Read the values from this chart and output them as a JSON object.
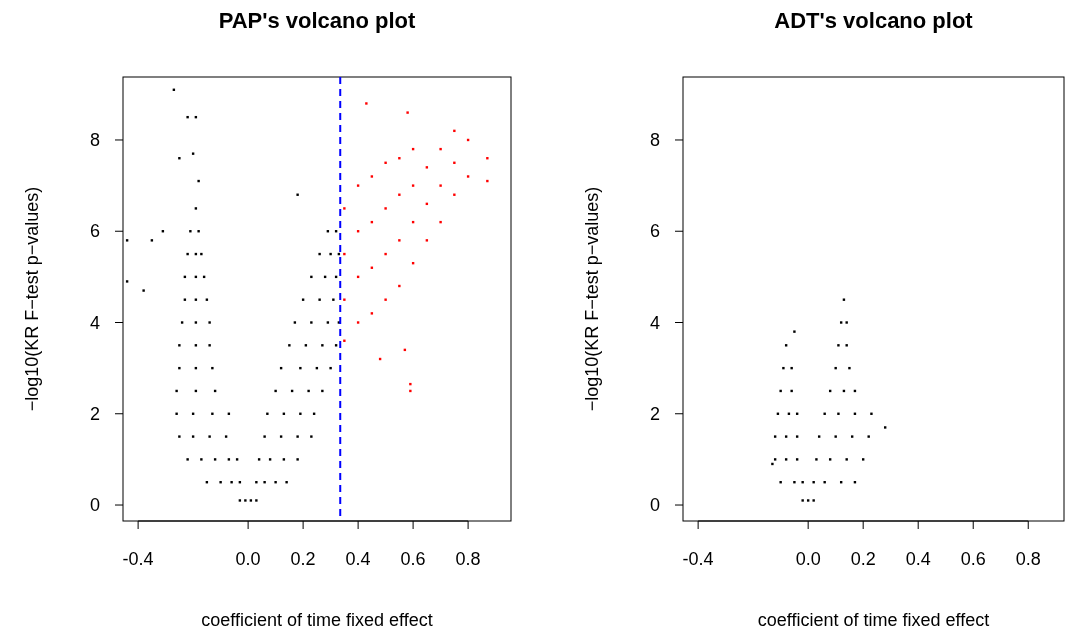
{
  "chart_data": [
    {
      "type": "scatter",
      "title": "PAP's volcano plot",
      "xlabel": "coefficient of time fixed effect",
      "ylabel": "−log10(KR F−test p−values)",
      "xlim": [
        -0.455,
        0.956
      ],
      "ylim": [
        -0.35,
        9.38
      ],
      "xticks": [
        -0.4,
        {
          "value": 0,
          "label": "0.0"
        },
        0.2,
        0.4,
        0.6,
        0.8
      ],
      "yticks": [
        0,
        2,
        4,
        6,
        8
      ],
      "marker": "square",
      "grid": false,
      "series": [
        {
          "color": "#000000",
          "x": [
            -0.03,
            -0.01,
            0.01,
            0.03,
            -0.15,
            -0.1,
            -0.06,
            -0.03,
            0.03,
            0.06,
            0.1,
            0.14,
            -0.22,
            -0.17,
            -0.12,
            -0.07,
            -0.04,
            0.04,
            0.08,
            0.13,
            0.18,
            -0.25,
            -0.2,
            -0.14,
            -0.08,
            0.06,
            0.12,
            0.18,
            0.23,
            -0.26,
            -0.2,
            -0.13,
            -0.07,
            0.07,
            0.13,
            0.19,
            0.24,
            -0.26,
            -0.19,
            -0.12,
            0.1,
            0.16,
            0.22,
            0.27,
            -0.25,
            -0.19,
            -0.13,
            0.12,
            0.19,
            0.25,
            0.3,
            -0.25,
            -0.19,
            -0.14,
            0.15,
            0.21,
            0.27,
            0.32,
            -0.24,
            -0.19,
            -0.14,
            0.17,
            0.23,
            0.29,
            0.33,
            -0.23,
            -0.19,
            -0.15,
            0.2,
            0.26,
            0.31,
            -0.23,
            -0.19,
            -0.16,
            0.23,
            0.28,
            0.32,
            -0.22,
            -0.19,
            -0.17,
            0.26,
            0.3,
            0.33,
            -0.21,
            -0.18,
            0.29,
            0.32,
            -0.19,
            -0.27,
            -0.22,
            -0.19,
            -0.25,
            -0.2,
            -0.18,
            -0.44,
            -0.44,
            -0.35,
            -0.31,
            -0.38,
            0.18
          ],
          "values": [
            0.1,
            0.1,
            0.1,
            0.1,
            0.5,
            0.5,
            0.5,
            0.5,
            0.5,
            0.5,
            0.5,
            0.5,
            1,
            1,
            1,
            1,
            1,
            1,
            1,
            1,
            1,
            1.5,
            1.5,
            1.5,
            1.5,
            1.5,
            1.5,
            1.5,
            1.5,
            2,
            2,
            2,
            2,
            2,
            2,
            2,
            2,
            2.5,
            2.5,
            2.5,
            2.5,
            2.5,
            2.5,
            2.5,
            3,
            3,
            3,
            3,
            3,
            3,
            3,
            3.5,
            3.5,
            3.5,
            3.5,
            3.5,
            3.5,
            3.5,
            4,
            4,
            4,
            4,
            4,
            4,
            4,
            4.5,
            4.5,
            4.5,
            4.5,
            4.5,
            4.5,
            5,
            5,
            5,
            5,
            5,
            5,
            5.5,
            5.5,
            5.5,
            5.5,
            5.5,
            5.5,
            6,
            6,
            6,
            6,
            6.5,
            9.1,
            8.5,
            8.5,
            7.6,
            7.7,
            7.1,
            5.8,
            4.9,
            5.8,
            6,
            4.7,
            6.8
          ]
        },
        {
          "color": "#ff0000",
          "x": [
            0.35,
            0.35,
            0.35,
            0.35,
            0.4,
            0.4,
            0.4,
            0.4,
            0.45,
            0.45,
            0.45,
            0.45,
            0.43,
            0.5,
            0.5,
            0.5,
            0.5,
            0.55,
            0.55,
            0.55,
            0.55,
            0.6,
            0.6,
            0.6,
            0.6,
            0.58,
            0.65,
            0.65,
            0.65,
            0.7,
            0.7,
            0.7,
            0.75,
            0.75,
            0.75,
            0.8,
            0.8,
            0.87,
            0.87,
            0.57,
            0.48,
            0.59,
            0.59
          ],
          "values": [
            3.6,
            4.5,
            5.5,
            6.5,
            4,
            5,
            6,
            7,
            4.2,
            5.2,
            6.2,
            7.2,
            8.8,
            4.5,
            5.5,
            6.5,
            7.5,
            4.8,
            5.8,
            6.8,
            7.6,
            5.3,
            6.2,
            7,
            7.8,
            8.6,
            5.8,
            6.6,
            7.4,
            6.2,
            7,
            7.8,
            6.8,
            7.5,
            8.2,
            7.2,
            8,
            7.1,
            7.6,
            3.4,
            3.2,
            2.65,
            2.5
          ]
        }
      ],
      "ref_lines": [
        {
          "axis": "x",
          "value": 0.335,
          "color": "#0000ff",
          "line_style": "dashed"
        }
      ]
    },
    {
      "type": "scatter",
      "title": "ADT's volcano plot",
      "xlabel": "coefficient of time fixed effect",
      "ylabel": "−log10(KR F−test p−values)",
      "xlim": [
        -0.455,
        0.93
      ],
      "ylim": [
        -0.35,
        9.38
      ],
      "xticks": [
        -0.4,
        {
          "value": 0,
          "label": "0.0"
        },
        0.2,
        0.4,
        0.6,
        0.8
      ],
      "yticks": [
        0,
        2,
        4,
        6,
        8
      ],
      "marker": "square",
      "grid": false,
      "series": [
        {
          "color": "#000000",
          "x": [
            -0.02,
            0,
            0.02,
            -0.1,
            -0.05,
            -0.02,
            0.02,
            0.06,
            0.12,
            0.17,
            -0.12,
            -0.08,
            -0.04,
            0.03,
            0.08,
            0.14,
            0.2,
            -0.12,
            -0.08,
            -0.04,
            0.04,
            0.1,
            0.16,
            0.22,
            -0.11,
            -0.07,
            -0.04,
            0.06,
            0.11,
            0.17,
            0.23,
            -0.1,
            -0.06,
            0.08,
            0.13,
            0.17,
            -0.09,
            -0.06,
            0.1,
            0.15,
            -0.08,
            0.11,
            0.14,
            0.12,
            0.14,
            0.13,
            -0.05,
            0.28,
            -0.13
          ],
          "values": [
            0.1,
            0.1,
            0.1,
            0.5,
            0.5,
            0.5,
            0.5,
            0.5,
            0.5,
            0.5,
            1,
            1,
            1,
            1,
            1,
            1,
            1,
            1.5,
            1.5,
            1.5,
            1.5,
            1.5,
            1.5,
            1.5,
            2,
            2,
            2,
            2,
            2,
            2,
            2,
            2.5,
            2.5,
            2.5,
            2.5,
            2.5,
            3,
            3,
            3,
            3,
            3.5,
            3.5,
            3.5,
            4,
            4,
            4.5,
            3.8,
            1.7,
            0.9
          ]
        }
      ]
    }
  ]
}
